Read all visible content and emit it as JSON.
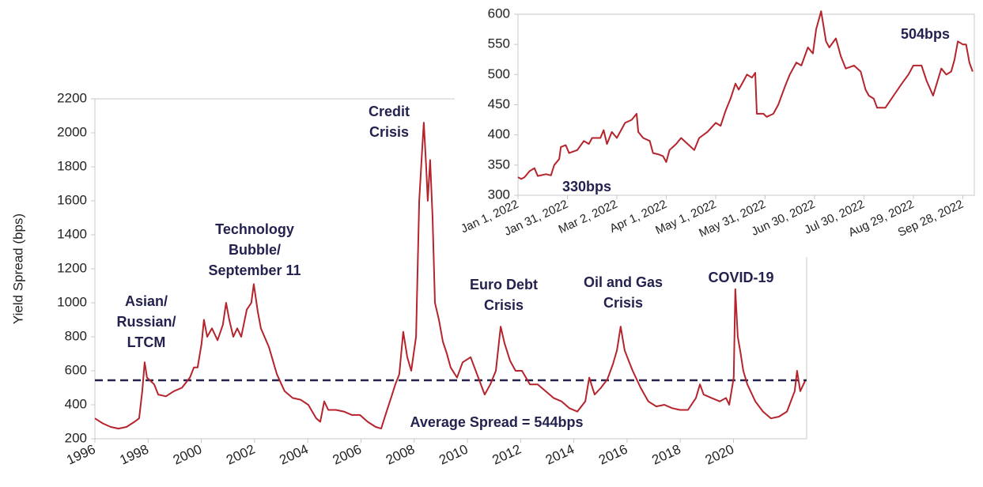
{
  "chart_data": [
    {
      "type": "line",
      "y_label": "Yield Spread (bps)",
      "xlim": [
        1996,
        2022.75
      ],
      "xticks": [
        1996,
        1998,
        2000,
        2002,
        2004,
        2006,
        2008,
        2010,
        2012,
        2014,
        2016,
        2018,
        2020
      ],
      "ylim": [
        200,
        2200
      ],
      "yticks": [
        200,
        400,
        600,
        800,
        1000,
        1200,
        1400,
        1600,
        1800,
        2000,
        2200
      ],
      "x": [
        1996.0,
        1996.3,
        1996.59,
        1996.89,
        1997.19,
        1997.49,
        1997.66,
        1997.78,
        1997.87,
        1997.96,
        1998.23,
        1998.38,
        1998.67,
        1998.97,
        1999.27,
        1999.57,
        1999.72,
        1999.86,
        2000.01,
        2000.1,
        2000.22,
        2000.4,
        2000.61,
        2000.81,
        2000.93,
        2001.05,
        2001.2,
        2001.35,
        2001.5,
        2001.71,
        2001.88,
        2001.97,
        2002.12,
        2002.24,
        2002.54,
        2002.84,
        2003.13,
        2003.43,
        2003.73,
        2004.02,
        2004.32,
        2004.47,
        2004.62,
        2004.77,
        2005.06,
        2005.36,
        2005.66,
        2005.96,
        2006.25,
        2006.55,
        2006.76,
        2006.94,
        2007.15,
        2007.29,
        2007.44,
        2007.59,
        2007.74,
        2007.89,
        2008.07,
        2008.19,
        2008.3,
        2008.36,
        2008.45,
        2008.51,
        2008.6,
        2008.69,
        2008.78,
        2008.93,
        2009.08,
        2009.23,
        2009.37,
        2009.61,
        2009.82,
        2010.12,
        2010.41,
        2010.65,
        2010.86,
        2011.07,
        2011.25,
        2011.4,
        2011.6,
        2011.81,
        2012.05,
        2012.35,
        2012.64,
        2012.94,
        2013.24,
        2013.54,
        2013.83,
        2014.13,
        2014.43,
        2014.58,
        2014.78,
        2015.02,
        2015.26,
        2015.47,
        2015.62,
        2015.76,
        2015.91,
        2016.06,
        2016.21,
        2016.51,
        2016.8,
        2017.1,
        2017.4,
        2017.7,
        2017.99,
        2018.29,
        2018.59,
        2018.74,
        2018.88,
        2019.18,
        2019.48,
        2019.72,
        2019.84,
        2020.01,
        2020.07,
        2020.16,
        2020.25,
        2020.37,
        2020.52,
        2020.82,
        2021.11,
        2021.41,
        2021.71,
        2022.01,
        2022.3,
        2022.39,
        2022.51,
        2022.69
      ],
      "series": [
        {
          "color": "#b5242d",
          "values": [
            320,
            290,
            270,
            260,
            270,
            300,
            320,
            480,
            650,
            560,
            520,
            460,
            450,
            480,
            500,
            560,
            620,
            620,
            760,
            900,
            800,
            850,
            780,
            870,
            1000,
            900,
            800,
            850,
            800,
            960,
            1000,
            1110,
            950,
            850,
            740,
            580,
            480,
            440,
            430,
            400,
            320,
            300,
            420,
            370,
            370,
            360,
            340,
            340,
            300,
            270,
            260,
            350,
            450,
            520,
            580,
            830,
            680,
            600,
            800,
            1600,
            1900,
            2060,
            1800,
            1600,
            1840,
            1500,
            1000,
            900,
            770,
            700,
            620,
            560,
            650,
            680,
            560,
            460,
            520,
            600,
            860,
            760,
            660,
            600,
            600,
            520,
            520,
            480,
            440,
            420,
            380,
            360,
            420,
            560,
            460,
            500,
            550,
            640,
            720,
            860,
            720,
            660,
            600,
            500,
            420,
            390,
            400,
            380,
            370,
            370,
            440,
            520,
            460,
            440,
            420,
            440,
            400,
            560,
            1080,
            800,
            720,
            600,
            520,
            420,
            360,
            320,
            330,
            360,
            480,
            600,
            480,
            540
          ]
        }
      ],
      "reference_line": {
        "value": 544,
        "label": "Average Spread = 544bps",
        "color": "#23224f"
      },
      "annotations": [
        {
          "lines": [
            "Asian/",
            "Russian/",
            "LTCM"
          ]
        },
        {
          "lines": [
            "Technology",
            "Bubble/",
            "September 11"
          ]
        },
        {
          "lines": [
            "Credit",
            "Crisis"
          ]
        },
        {
          "lines": [
            "Euro Debt",
            "Crisis"
          ]
        },
        {
          "lines": [
            "Oil and Gas",
            "Crisis"
          ]
        },
        {
          "lines": [
            "COVID-19"
          ]
        }
      ]
    },
    {
      "type": "line",
      "xlim": [
        "2022-01-01",
        "2022-10-05"
      ],
      "xticks": [
        {
          "value": "2022-01-01",
          "label": "Jan 1, 2022"
        },
        {
          "value": "2022-01-31",
          "label": "Jan 31, 2022"
        },
        {
          "value": "2022-03-02",
          "label": "Mar 2, 2022"
        },
        {
          "value": "2022-04-01",
          "label": "Apr 1, 2022"
        },
        {
          "value": "2022-05-01",
          "label": "May 1, 2022"
        },
        {
          "value": "2022-05-31",
          "label": "May 31, 2022"
        },
        {
          "value": "2022-06-30",
          "label": "Jun 30, 2022"
        },
        {
          "value": "2022-07-30",
          "label": "Jul 30, 2022"
        },
        {
          "value": "2022-08-29",
          "label": "Aug 29, 2022"
        },
        {
          "value": "2022-09-28",
          "label": "Sep 28, 2022"
        }
      ],
      "ylim": [
        300,
        600
      ],
      "yticks": [
        300,
        350,
        400,
        450,
        500,
        550,
        600
      ],
      "x": [
        "2022-01-01",
        "2022-01-03",
        "2022-01-05",
        "2022-01-08",
        "2022-01-11",
        "2022-01-13",
        "2022-01-18",
        "2022-01-21",
        "2022-01-23",
        "2022-01-26",
        "2022-01-27",
        "2022-01-30",
        "2022-02-01",
        "2022-02-06",
        "2022-02-10",
        "2022-02-13",
        "2022-02-15",
        "2022-02-20",
        "2022-02-22",
        "2022-02-24",
        "2022-02-27",
        "2022-03-02",
        "2022-03-07",
        "2022-03-11",
        "2022-03-14",
        "2022-03-15",
        "2022-03-18",
        "2022-03-22",
        "2022-03-24",
        "2022-03-27",
        "2022-03-30",
        "2022-04-01",
        "2022-04-03",
        "2022-04-07",
        "2022-04-10",
        "2022-04-14",
        "2022-04-18",
        "2022-04-21",
        "2022-04-26",
        "2022-05-01",
        "2022-05-04",
        "2022-05-07",
        "2022-05-10",
        "2022-05-13",
        "2022-05-15",
        "2022-05-18",
        "2022-05-20",
        "2022-05-23",
        "2022-05-25",
        "2022-05-26",
        "2022-05-30",
        "2022-06-01",
        "2022-06-05",
        "2022-06-08",
        "2022-06-12",
        "2022-06-15",
        "2022-06-19",
        "2022-06-22",
        "2022-06-26",
        "2022-06-29",
        "2022-07-01",
        "2022-07-04",
        "2022-07-07",
        "2022-07-09",
        "2022-07-13",
        "2022-07-16",
        "2022-07-19",
        "2022-07-24",
        "2022-07-28",
        "2022-07-31",
        "2022-08-02",
        "2022-08-05",
        "2022-08-07",
        "2022-08-12",
        "2022-08-17",
        "2022-08-22",
        "2022-08-26",
        "2022-08-29",
        "2022-09-03",
        "2022-09-06",
        "2022-09-10",
        "2022-09-15",
        "2022-09-18",
        "2022-09-21",
        "2022-09-23",
        "2022-09-25",
        "2022-09-28",
        "2022-09-30",
        "2022-10-02",
        "2022-10-04"
      ],
      "series": [
        {
          "color": "#b5242d",
          "values": [
            330,
            327,
            330,
            340,
            345,
            332,
            335,
            333,
            350,
            360,
            380,
            383,
            370,
            375,
            390,
            385,
            395,
            395,
            408,
            385,
            405,
            395,
            420,
            425,
            435,
            405,
            395,
            390,
            370,
            368,
            365,
            355,
            375,
            385,
            395,
            385,
            375,
            395,
            405,
            420,
            415,
            440,
            460,
            485,
            475,
            490,
            500,
            495,
            503,
            435,
            435,
            430,
            435,
            450,
            480,
            500,
            520,
            515,
            545,
            535,
            575,
            605,
            555,
            545,
            560,
            530,
            510,
            515,
            505,
            475,
            465,
            460,
            445,
            445,
            465,
            485,
            500,
            515,
            515,
            490,
            465,
            510,
            500,
            505,
            525,
            555,
            550,
            550,
            520,
            505
          ]
        }
      ],
      "annotations": [
        {
          "lines": [
            "330bps"
          ]
        },
        {
          "lines": [
            "504bps"
          ]
        }
      ]
    }
  ]
}
